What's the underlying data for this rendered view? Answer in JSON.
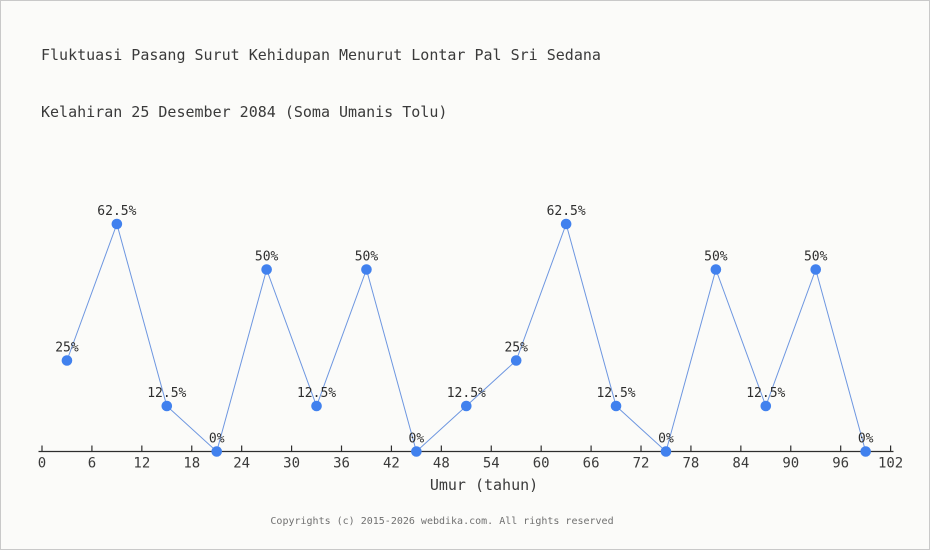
{
  "chart_data": {
    "type": "line",
    "title_line1": "Fluktuasi Pasang Surut Kehidupan Menurut Lontar Pal Sri Sedana",
    "title_line2": "Kelahiran 25 Desember 2084 (Soma Umanis Tolu)",
    "xlabel": "Umur (tahun)",
    "ylabel": "",
    "x": [
      3,
      9,
      15,
      21,
      27,
      33,
      39,
      45,
      51,
      57,
      63,
      69,
      75,
      81,
      87,
      93,
      99
    ],
    "values": [
      25,
      62.5,
      12.5,
      0,
      50,
      12.5,
      50,
      0,
      12.5,
      25,
      62.5,
      12.5,
      0,
      50,
      12.5,
      50,
      0
    ],
    "point_labels": [
      "25%",
      "62.5%",
      "12.5%",
      "0%",
      "50%",
      "12.5%",
      "50%",
      "0%",
      "12.5%",
      "25%",
      "62.5%",
      "12.5%",
      "0%",
      "50%",
      "12.5%",
      "50%",
      "0%"
    ],
    "x_ticks": [
      0,
      6,
      12,
      18,
      24,
      30,
      36,
      42,
      48,
      54,
      60,
      66,
      72,
      78,
      84,
      90,
      96,
      102
    ],
    "xlim": [
      0,
      102
    ],
    "ylim": [
      0,
      100
    ],
    "grid": false,
    "legend": false,
    "colors": {
      "marker": "#4181ee",
      "line": "#6d96e0",
      "axis": "#2e2e2e",
      "tick_label": "#3a3a3a",
      "point_label": "#2e2e2e",
      "background": "#fbfbf9"
    }
  },
  "footer": {
    "text": "Copyrights (c) 2015-2026 webdika.com. All rights reserved"
  }
}
